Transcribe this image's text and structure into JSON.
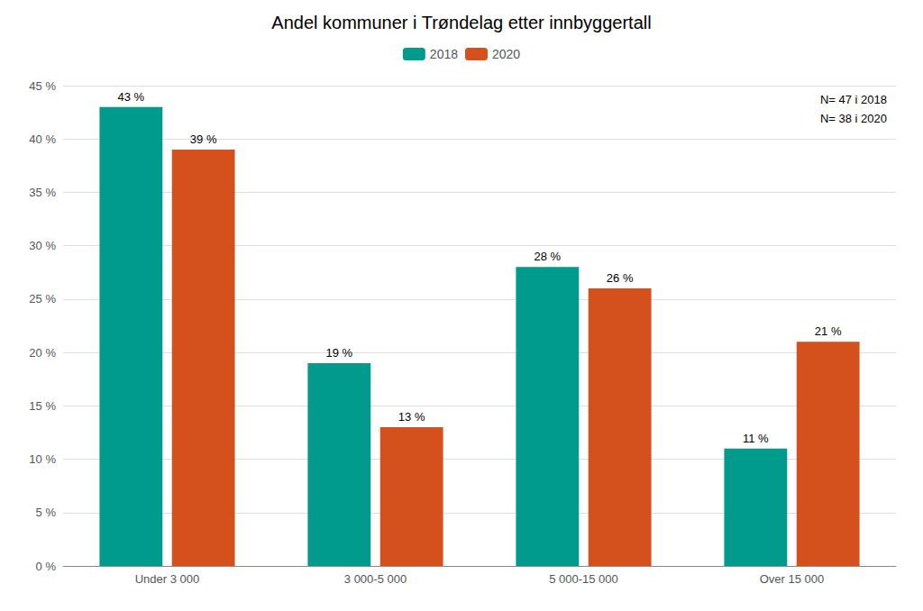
{
  "chart_data": {
    "type": "bar",
    "title": "Andel kommuner i Trøndelag etter innbyggertall",
    "categories": [
      "Under 3 000",
      "3 000-5 000",
      "5 000-15 000",
      "Over 15 000"
    ],
    "series": [
      {
        "name": "2018",
        "color": "#009B8D",
        "values": [
          43,
          19,
          28,
          11
        ],
        "value_labels": [
          "43 %",
          "19 %",
          "28 %",
          "11 %"
        ]
      },
      {
        "name": "2020",
        "color": "#D4511E",
        "values": [
          39,
          13,
          26,
          21
        ],
        "value_labels": [
          "39 %",
          "13 %",
          "26 %",
          "21 %"
        ]
      }
    ],
    "ylim": [
      0,
      45
    ],
    "yticks": [
      {
        "value": 0,
        "label": "0 %"
      },
      {
        "value": 5,
        "label": "5 %"
      },
      {
        "value": 10,
        "label": "10 %"
      },
      {
        "value": 15,
        "label": "15 %"
      },
      {
        "value": 20,
        "label": "20 %"
      },
      {
        "value": 25,
        "label": "25 %"
      },
      {
        "value": 30,
        "label": "30 %"
      },
      {
        "value": 35,
        "label": "35 %"
      },
      {
        "value": 40,
        "label": "40 %"
      },
      {
        "value": 45,
        "label": "45 %"
      }
    ],
    "annotation": "N= 47 i 2018\nN= 38 i 2020",
    "grid": true,
    "legend": "top",
    "data_labels": true
  }
}
